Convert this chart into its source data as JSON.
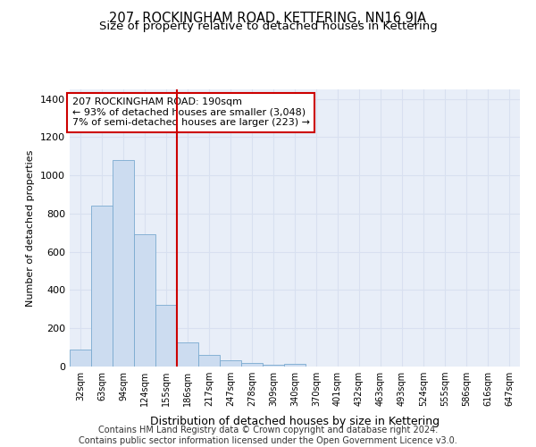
{
  "title": "207, ROCKINGHAM ROAD, KETTERING, NN16 9JA",
  "subtitle": "Size of property relative to detached houses in Kettering",
  "xlabel": "Distribution of detached houses by size in Kettering",
  "ylabel": "Number of detached properties",
  "footer_line1": "Contains HM Land Registry data © Crown copyright and database right 2024.",
  "footer_line2": "Contains public sector information licensed under the Open Government Licence v3.0.",
  "bin_labels": [
    "32sqm",
    "63sqm",
    "94sqm",
    "124sqm",
    "155sqm",
    "186sqm",
    "217sqm",
    "247sqm",
    "278sqm",
    "309sqm",
    "340sqm",
    "370sqm",
    "401sqm",
    "432sqm",
    "463sqm",
    "493sqm",
    "524sqm",
    "555sqm",
    "586sqm",
    "616sqm",
    "647sqm"
  ],
  "bar_values": [
    90,
    840,
    1080,
    690,
    325,
    125,
    60,
    35,
    20,
    10,
    15,
    0,
    0,
    0,
    0,
    0,
    0,
    0,
    0,
    0,
    0
  ],
  "bar_color": "#ccdcf0",
  "bar_edge_color": "#7aaad0",
  "vline_x": 4.5,
  "vline_color": "#cc0000",
  "annotation_text": "207 ROCKINGHAM ROAD: 190sqm\n← 93% of detached houses are smaller (3,048)\n7% of semi-detached houses are larger (223) →",
  "annotation_box_facecolor": "white",
  "annotation_box_edgecolor": "#cc0000",
  "ylim": [
    0,
    1450
  ],
  "yticks": [
    0,
    200,
    400,
    600,
    800,
    1000,
    1200,
    1400
  ],
  "grid_color": "#d8e0f0",
  "background_color": "#e8eef8",
  "title_fontsize": 10.5,
  "subtitle_fontsize": 9.5,
  "tick_fontsize": 7,
  "ylabel_fontsize": 8,
  "xlabel_fontsize": 9,
  "annotation_fontsize": 8,
  "footer_fontsize": 7
}
